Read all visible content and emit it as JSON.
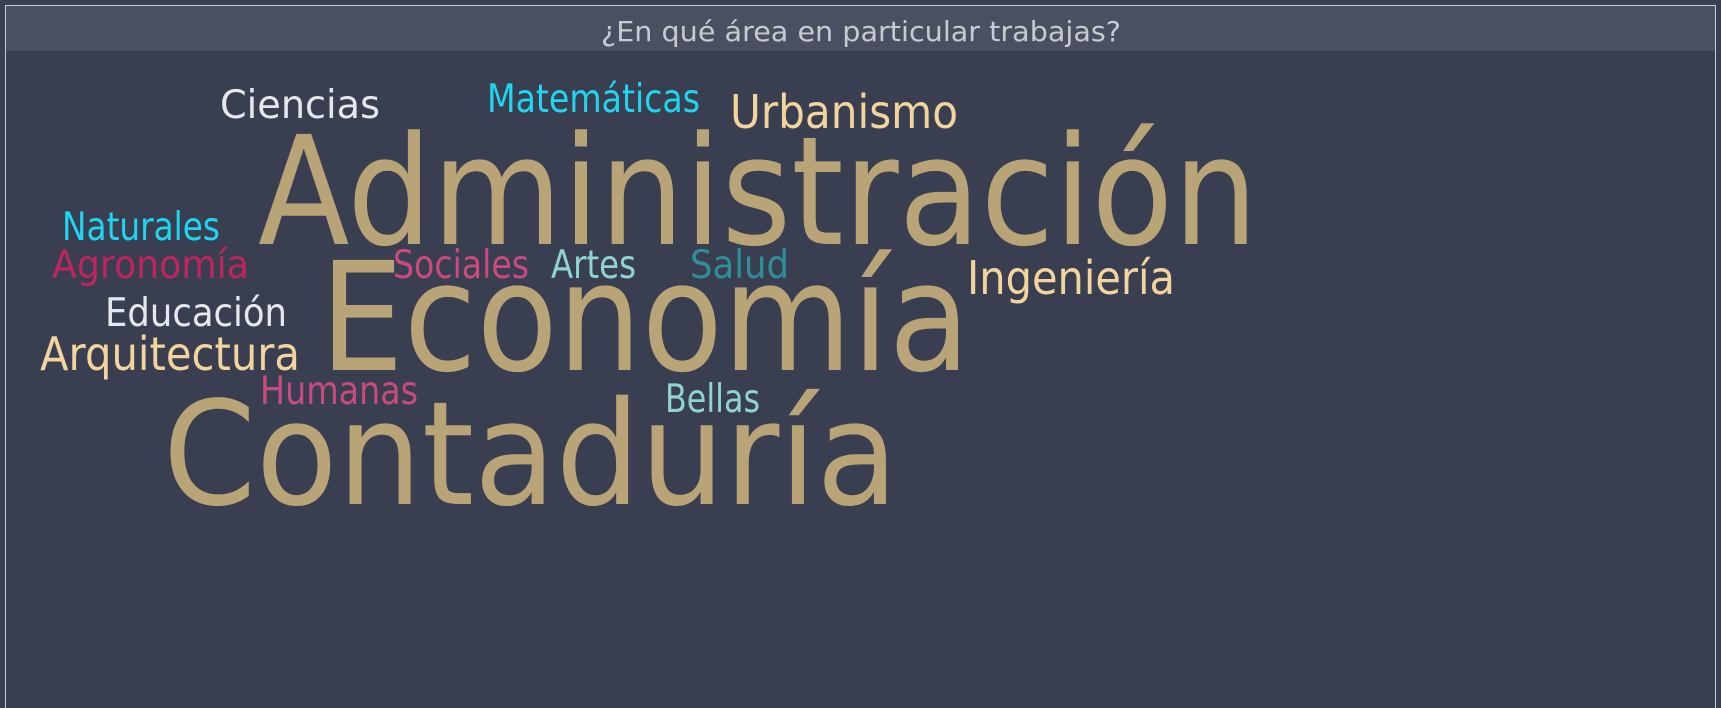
{
  "chart_data": {
    "type": "wordcloud",
    "title": "¿En qué área en particular trabajas?",
    "words": [
      {
        "text": "Ciencias",
        "value": 1,
        "color": "#e6e7ec"
      },
      {
        "text": "Matemáticas",
        "value": 1,
        "color": "#1fd6f0"
      },
      {
        "text": "Urbanismo",
        "value": 2,
        "color": "#f2d49c"
      },
      {
        "text": "Administración",
        "value": 17,
        "color": "#b8a477"
      },
      {
        "text": "Naturales",
        "value": 1,
        "color": "#1fd6f0"
      },
      {
        "text": "Agronomía",
        "value": 1,
        "color": "#c0245e"
      },
      {
        "text": "Sociales",
        "value": 1,
        "color": "#c94a7c"
      },
      {
        "text": "Artes",
        "value": 1,
        "color": "#8fd3d3"
      },
      {
        "text": "Salud",
        "value": 1,
        "color": "#2e8f98"
      },
      {
        "text": "Ingeniería",
        "value": 2,
        "color": "#f2d49c"
      },
      {
        "text": "Economía",
        "value": 17,
        "color": "#b8a477"
      },
      {
        "text": "Educación",
        "value": 1,
        "color": "#e6e7ec"
      },
      {
        "text": "Arquitectura",
        "value": 2,
        "color": "#f2d49c"
      },
      {
        "text": "Humanas",
        "value": 1,
        "color": "#c94a7c"
      },
      {
        "text": "Bellas",
        "value": 1,
        "color": "#8fd3d3"
      },
      {
        "text": "Contaduría",
        "value": 16,
        "color": "#b8a477"
      }
    ]
  }
}
